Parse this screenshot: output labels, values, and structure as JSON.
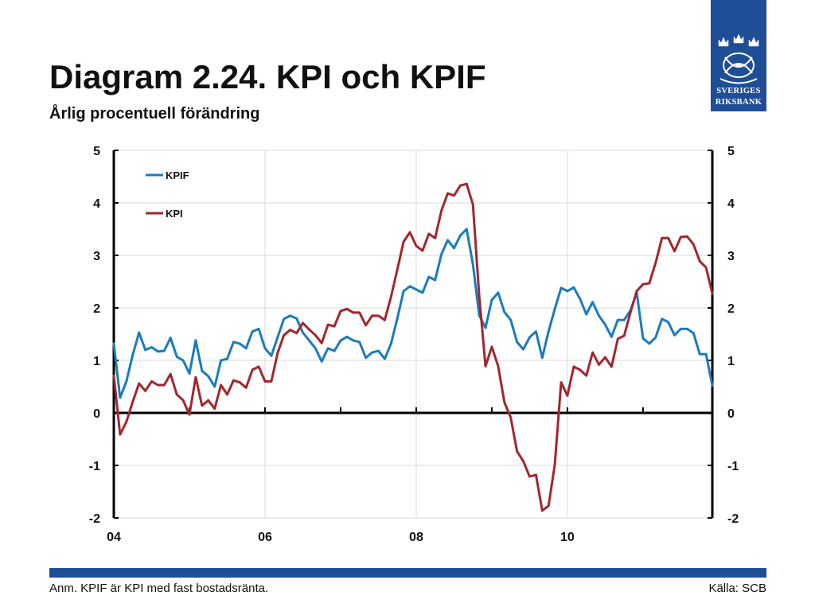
{
  "logo": {
    "line1": "SVERIGES",
    "line2": "RIKSBANK",
    "icon": "riksbank-crowns-emblem-icon",
    "background": "#1f4e96"
  },
  "chart_data": {
    "type": "line",
    "title": "Diagram 2.24. KPI och KPIF",
    "subtitle": "Årlig procentuell förändring",
    "ylim": [
      -2,
      5
    ],
    "y_ticks": [
      5,
      4,
      3,
      2,
      1,
      0,
      -1,
      -2
    ],
    "y_axes": [
      "left",
      "right"
    ],
    "grid": true,
    "legend_position": "top-left",
    "x_ticks": [
      {
        "at": "2004-01",
        "label": "04"
      },
      {
        "at": "2006-01",
        "label": "06"
      },
      {
        "at": "2008-01",
        "label": "08"
      },
      {
        "at": "2010-01",
        "label": "10"
      }
    ],
    "x": [
      "2004-01",
      "2004-02",
      "2004-03",
      "2004-04",
      "2004-05",
      "2004-06",
      "2004-07",
      "2004-08",
      "2004-09",
      "2004-10",
      "2004-11",
      "2004-12",
      "2005-01",
      "2005-02",
      "2005-03",
      "2005-04",
      "2005-05",
      "2005-06",
      "2005-07",
      "2005-08",
      "2005-09",
      "2005-10",
      "2005-11",
      "2005-12",
      "2006-01",
      "2006-02",
      "2006-03",
      "2006-04",
      "2006-05",
      "2006-06",
      "2006-07",
      "2006-08",
      "2006-09",
      "2006-10",
      "2006-11",
      "2006-12",
      "2007-01",
      "2007-02",
      "2007-03",
      "2007-04",
      "2007-05",
      "2007-06",
      "2007-07",
      "2007-08",
      "2007-09",
      "2007-10",
      "2007-11",
      "2007-12",
      "2008-01",
      "2008-02",
      "2008-03",
      "2008-04",
      "2008-05",
      "2008-06",
      "2008-07",
      "2008-08",
      "2008-09",
      "2008-10",
      "2008-11",
      "2008-12",
      "2009-01",
      "2009-02",
      "2009-03",
      "2009-04",
      "2009-05",
      "2009-06",
      "2009-07",
      "2009-08",
      "2009-09",
      "2009-10",
      "2009-11",
      "2009-12",
      "2010-01",
      "2010-02",
      "2010-03",
      "2010-04",
      "2010-05",
      "2010-06",
      "2010-07",
      "2010-08",
      "2010-09",
      "2010-10",
      "2010-11",
      "2010-12",
      "2011-01",
      "2011-02",
      "2011-03",
      "2011-04",
      "2011-05",
      "2011-06",
      "2011-07",
      "2011-08",
      "2011-09",
      "2011-10",
      "2011-11",
      "2011-12"
    ],
    "series": [
      {
        "name": "KPIF",
        "color": "#1b7bbd",
        "values": [
          1.32,
          0.29,
          0.6,
          1.1,
          1.53,
          1.2,
          1.25,
          1.17,
          1.18,
          1.43,
          1.07,
          1.0,
          0.75,
          1.38,
          0.8,
          0.7,
          0.5,
          1.0,
          1.03,
          1.35,
          1.32,
          1.23,
          1.55,
          1.6,
          1.23,
          1.09,
          1.44,
          1.79,
          1.85,
          1.8,
          1.53,
          1.38,
          1.23,
          0.98,
          1.23,
          1.18,
          1.38,
          1.45,
          1.38,
          1.35,
          1.05,
          1.15,
          1.18,
          1.03,
          1.32,
          1.8,
          2.32,
          2.41,
          2.35,
          2.29,
          2.59,
          2.53,
          3.02,
          3.29,
          3.14,
          3.38,
          3.5,
          2.83,
          1.86,
          1.62,
          2.15,
          2.29,
          1.92,
          1.77,
          1.35,
          1.21,
          1.44,
          1.55,
          1.05,
          1.55,
          1.98,
          2.38,
          2.32,
          2.39,
          2.17,
          1.88,
          2.11,
          1.85,
          1.68,
          1.45,
          1.77,
          1.77,
          1.95,
          2.29,
          1.42,
          1.32,
          1.44,
          1.79,
          1.73,
          1.48,
          1.6,
          1.6,
          1.52,
          1.12,
          1.12,
          0.52
        ]
      },
      {
        "name": "KPI",
        "color": "#a2262e",
        "values": [
          0.71,
          -0.41,
          -0.17,
          0.21,
          0.56,
          0.42,
          0.6,
          0.53,
          0.53,
          0.74,
          0.35,
          0.24,
          -0.03,
          0.68,
          0.14,
          0.24,
          0.08,
          0.53,
          0.35,
          0.62,
          0.58,
          0.48,
          0.82,
          0.88,
          0.6,
          0.6,
          1.14,
          1.48,
          1.58,
          1.52,
          1.71,
          1.59,
          1.48,
          1.33,
          1.68,
          1.65,
          1.94,
          1.98,
          1.91,
          1.91,
          1.67,
          1.85,
          1.85,
          1.77,
          2.21,
          2.73,
          3.26,
          3.44,
          3.18,
          3.09,
          3.41,
          3.33,
          3.85,
          4.18,
          4.14,
          4.33,
          4.36,
          3.97,
          2.23,
          0.89,
          1.26,
          0.89,
          0.2,
          -0.09,
          -0.73,
          -0.92,
          -1.21,
          -1.18,
          -1.86,
          -1.77,
          -0.98,
          0.58,
          0.33,
          0.88,
          0.82,
          0.71,
          1.15,
          0.92,
          1.06,
          0.88,
          1.41,
          1.47,
          1.91,
          2.32,
          2.45,
          2.47,
          2.86,
          3.33,
          3.33,
          3.08,
          3.35,
          3.36,
          3.21,
          2.89,
          2.77,
          2.27
        ]
      }
    ]
  },
  "footer": {
    "note": "Anm. KPIF är KPI med fast bostadsränta.",
    "source": "Källa: SCB",
    "bar_color": "#1f4e96"
  }
}
